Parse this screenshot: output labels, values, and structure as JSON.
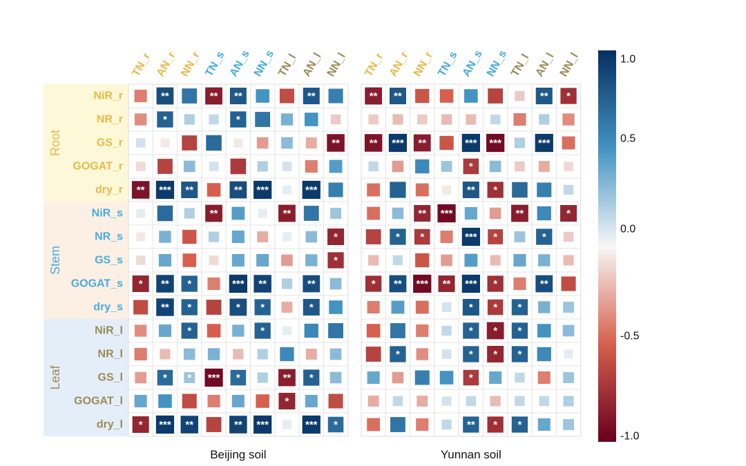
{
  "colors": {
    "root": "#e9b94a",
    "stem": "#46ace0",
    "leaf": "#9b8a57",
    "root_bg": "#fdf8d8",
    "stem_bg": "#fcefe3",
    "leaf_bg": "#e4eef8",
    "neg_strong": "#67001f",
    "neg_mid": "#d6604d",
    "neutral": "#f7f7f7",
    "pos_mid": "#4393c3",
    "pos_strong": "#053061"
  },
  "chart_data": {
    "type": "heatmap",
    "x_categories": [
      "TN_r",
      "AN_r",
      "NN_r",
      "TN_s",
      "AN_s",
      "NN_s",
      "TN_l",
      "AN_l",
      "NN_l"
    ],
    "x_groups": [
      "root",
      "root",
      "root",
      "stem",
      "stem",
      "stem",
      "leaf",
      "leaf",
      "leaf"
    ],
    "y_categories": [
      "NiR_r",
      "NR_r",
      "GS_r",
      "GOGAT_r",
      "dry_r",
      "NiR_s",
      "NR_s",
      "GS_s",
      "GOGAT_s",
      "dry_s",
      "NiR_l",
      "NR_l",
      "GS_l",
      "GOGAT_l",
      "dry_l"
    ],
    "y_groups": [
      "root",
      "root",
      "root",
      "root",
      "root",
      "stem",
      "stem",
      "stem",
      "stem",
      "stem",
      "leaf",
      "leaf",
      "leaf",
      "leaf",
      "leaf"
    ],
    "tissue_groups": [
      {
        "key": "root",
        "label": "Root"
      },
      {
        "key": "stem",
        "label": "Stem"
      },
      {
        "key": "leaf",
        "label": "Leaf"
      }
    ],
    "colorbar": {
      "min": -1.0,
      "max": 1.0,
      "ticks": [
        "1.0",
        "0.5",
        "0.0",
        "-0.5",
        "-1.0"
      ]
    },
    "panels": [
      {
        "title": "Beijing soil",
        "values": [
          [
            -0.4,
            0.85,
            0.65,
            -0.85,
            0.8,
            0.5,
            -0.6,
            0.8,
            0.6
          ],
          [
            -0.35,
            0.75,
            0.2,
            0.15,
            0.75,
            0.65,
            0.35,
            0.5,
            -0.15
          ],
          [
            0.1,
            -0.05,
            -0.65,
            0.7,
            -0.05,
            -0.3,
            0.3,
            -0.25,
            -0.9
          ],
          [
            -0.1,
            -0.65,
            0.3,
            0.1,
            -0.7,
            0.2,
            0.1,
            -0.4,
            0.45
          ],
          [
            -0.9,
            0.95,
            0.8,
            -0.5,
            0.85,
            0.95,
            0.05,
            0.95,
            0.6
          ],
          [
            0.05,
            0.7,
            0.2,
            -0.85,
            0.45,
            0.05,
            -0.85,
            0.65,
            0.25
          ],
          [
            -0.05,
            0.35,
            -0.55,
            0.2,
            0.4,
            -0.25,
            0.05,
            0.3,
            -0.8
          ],
          [
            -0.1,
            0.4,
            -0.5,
            -0.1,
            0.4,
            0.4,
            -0.3,
            0.35,
            -0.75
          ],
          [
            -0.8,
            0.9,
            0.75,
            -0.4,
            0.95,
            0.9,
            0.2,
            0.85,
            0.3
          ],
          [
            -0.6,
            0.9,
            0.75,
            -0.65,
            0.85,
            0.75,
            -0.25,
            0.8,
            0.5
          ],
          [
            -0.35,
            0.4,
            0.75,
            -0.5,
            0.35,
            0.75,
            0.05,
            0.55,
            0.65
          ],
          [
            -0.4,
            -0.2,
            0.3,
            0.35,
            -0.2,
            0.2,
            0.55,
            -0.25,
            0.3
          ],
          [
            -0.3,
            0.7,
            0.25,
            -0.95,
            0.7,
            0.2,
            -0.85,
            0.75,
            0.3
          ],
          [
            0.4,
            0.5,
            -0.6,
            -0.4,
            0.4,
            -0.5,
            -0.8,
            0.4,
            -0.6
          ],
          [
            -0.8,
            0.95,
            0.9,
            -0.65,
            0.9,
            0.95,
            0.05,
            0.95,
            0.7
          ]
        ],
        "significance": [
          [
            "",
            "**",
            "",
            "**",
            "**",
            "",
            "",
            "**",
            ""
          ],
          [
            "",
            "*",
            "",
            "",
            "*",
            "",
            "",
            "",
            ""
          ],
          [
            "",
            "",
            "",
            "",
            "",
            "",
            "",
            "",
            "**"
          ],
          [
            "",
            "",
            "",
            "",
            "",
            "",
            "",
            "",
            ""
          ],
          [
            "**",
            "***",
            "**",
            "",
            "**",
            "***",
            "",
            "***",
            ""
          ],
          [
            "",
            "",
            "",
            "**",
            "",
            "",
            "**",
            "",
            ""
          ],
          [
            "",
            "",
            "",
            "",
            "",
            "",
            "",
            "",
            "*"
          ],
          [
            "",
            "",
            "",
            "",
            "",
            "",
            "",
            "",
            "*"
          ],
          [
            "*",
            "**",
            "*",
            "",
            "***",
            "**",
            "",
            "**",
            ""
          ],
          [
            "",
            "**",
            "*",
            "",
            "*",
            "*",
            "",
            "*",
            ""
          ],
          [
            "",
            "",
            "*",
            "",
            "",
            "*",
            "",
            "",
            ""
          ],
          [
            "",
            "",
            "",
            "",
            "",
            "",
            "",
            "",
            ""
          ],
          [
            "",
            "*",
            "*",
            "***",
            "*",
            "",
            "**",
            "*",
            ""
          ],
          [
            "",
            "",
            "",
            "",
            "",
            "",
            "*",
            "",
            ""
          ],
          [
            "*",
            "***",
            "**",
            "",
            "**",
            "***",
            "",
            "***",
            "*"
          ]
        ]
      },
      {
        "title": "Yunnan soil",
        "values": [
          [
            -0.85,
            0.8,
            -0.55,
            -0.5,
            0.5,
            -0.65,
            -0.15,
            0.8,
            -0.75
          ],
          [
            -0.15,
            -0.2,
            -0.15,
            -0.2,
            -0.2,
            0.15,
            -0.4,
            0.2,
            -0.35
          ],
          [
            -0.9,
            0.95,
            -0.85,
            -0.55,
            0.95,
            -0.95,
            0.2,
            0.95,
            -0.45
          ],
          [
            0.15,
            -0.3,
            0.55,
            0.25,
            -0.7,
            0.3,
            -0.15,
            -0.25,
            -0.1
          ],
          [
            -0.45,
            0.75,
            -0.45,
            -0.05,
            0.8,
            -0.75,
            0.7,
            0.6,
            0.15
          ],
          [
            -0.45,
            0.3,
            -0.8,
            -0.95,
            0.4,
            -0.3,
            -0.85,
            0.55,
            -0.8
          ],
          [
            -0.65,
            0.75,
            -0.7,
            -0.4,
            0.95,
            -0.65,
            0.25,
            0.75,
            -0.15
          ],
          [
            -0.2,
            0.15,
            -0.55,
            -0.3,
            0.45,
            -0.2,
            0.4,
            0.35,
            -0.2
          ],
          [
            -0.75,
            0.85,
            -0.95,
            -0.8,
            0.95,
            -0.75,
            -0.4,
            0.85,
            -0.6
          ],
          [
            -0.4,
            0.45,
            -0.45,
            0.1,
            0.8,
            -0.7,
            0.75,
            0.35,
            0.25
          ],
          [
            -0.5,
            0.65,
            -0.4,
            0.15,
            0.75,
            -0.85,
            0.75,
            0.5,
            0.3
          ],
          [
            -0.65,
            0.75,
            -0.35,
            0.1,
            0.75,
            -0.8,
            0.75,
            0.55,
            0.05
          ],
          [
            0.4,
            -0.3,
            0.6,
            0.5,
            -0.7,
            0.4,
            0.15,
            -0.4,
            0.25
          ],
          [
            -0.25,
            0.15,
            -0.25,
            0.1,
            0.15,
            -0.2,
            0.15,
            0.15,
            0.2
          ],
          [
            -0.45,
            0.65,
            -0.4,
            0.15,
            0.75,
            -0.75,
            0.75,
            0.4,
            0.25
          ]
        ],
        "significance": [
          [
            "**",
            "**",
            "",
            "",
            "",
            "",
            "",
            "**",
            "*"
          ],
          [
            "",
            "",
            "",
            "",
            "",
            "",
            "",
            "",
            ""
          ],
          [
            "**",
            "***",
            "**",
            "",
            "***",
            "***",
            "",
            "***",
            ""
          ],
          [
            "",
            "",
            "",
            "",
            "*",
            "",
            "",
            "",
            ""
          ],
          [
            "",
            "",
            "",
            "",
            "**",
            "*",
            "",
            "",
            ""
          ],
          [
            "",
            "",
            "**",
            "***",
            "",
            "",
            "**",
            "",
            "*"
          ],
          [
            "",
            "*",
            "*",
            "",
            "***",
            "*",
            "",
            "*",
            ""
          ],
          [
            "",
            "",
            "",
            "",
            "",
            "",
            "",
            "",
            ""
          ],
          [
            "*",
            "**",
            "***",
            "**",
            "***",
            "*",
            "",
            "**",
            ""
          ],
          [
            "",
            "",
            "",
            "",
            "*",
            "*",
            "*",
            "",
            ""
          ],
          [
            "",
            "",
            "",
            "",
            "*",
            "*",
            "*",
            "",
            ""
          ],
          [
            "",
            "*",
            "",
            "",
            "*",
            "*",
            "*",
            "",
            ""
          ],
          [
            "",
            "",
            "",
            "",
            "*",
            "",
            "",
            "",
            ""
          ],
          [
            "",
            "",
            "",
            "",
            "",
            "",
            "",
            "",
            ""
          ],
          [
            "",
            "",
            "",
            "",
            "**",
            "*",
            "*",
            "",
            ""
          ]
        ]
      }
    ]
  }
}
